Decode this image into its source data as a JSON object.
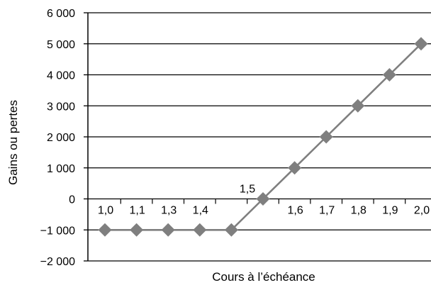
{
  "chart_data": {
    "type": "line",
    "xlabel": "Cours à l’échéance",
    "ylabel": "Gains ou pertes",
    "ylim": [
      -2000,
      6000
    ],
    "y_ticks": [
      {
        "value": 6000,
        "label": "6 000"
      },
      {
        "value": 5000,
        "label": "5 000"
      },
      {
        "value": 4000,
        "label": "4 000"
      },
      {
        "value": 3000,
        "label": "3 000"
      },
      {
        "value": 2000,
        "label": "2 000"
      },
      {
        "value": 1000,
        "label": "1 000"
      },
      {
        "value": 0,
        "label": "0"
      },
      {
        "value": -1000,
        "label": "−1 000"
      },
      {
        "value": -2000,
        "label": "−2 000"
      }
    ],
    "grid": true,
    "series": [
      {
        "color": "#7f7f7f",
        "marker": "diamond",
        "points": [
          {
            "x": "1,0",
            "y": -1000
          },
          {
            "x": "1,1",
            "y": -1000
          },
          {
            "x": "1,3",
            "y": -1000
          },
          {
            "x": "1,4",
            "y": -1000
          },
          {
            "x": "",
            "y": -1000
          },
          {
            "x": "1,5",
            "y": 0
          },
          {
            "x": "1,6",
            "y": 1000
          },
          {
            "x": "1,7",
            "y": 2000
          },
          {
            "x": "1,8",
            "y": 3000
          },
          {
            "x": "1,9",
            "y": 4000
          },
          {
            "x": "2,0",
            "y": 5000
          }
        ]
      }
    ]
  }
}
